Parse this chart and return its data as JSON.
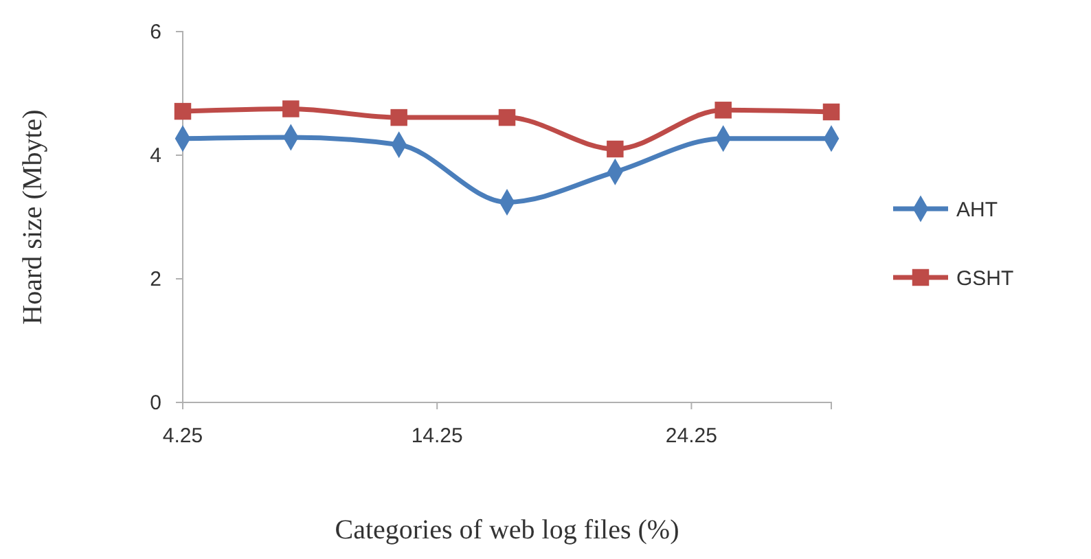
{
  "chart_data": {
    "type": "line",
    "xlabel": "Categories of web log files (%)",
    "ylabel": "Hoard size (Mbyte)",
    "x": [
      4.25,
      8.5,
      12.75,
      17,
      21.25,
      25.5,
      29.75
    ],
    "xlim": [
      4.25,
      29.75
    ],
    "xticks": [
      4.25,
      14.25,
      24.25
    ],
    "ylim": [
      0,
      6
    ],
    "yticks": [
      0,
      2,
      4,
      6
    ],
    "series": [
      {
        "name": "AHT",
        "color": "#4a7ebb",
        "marker": "diamond",
        "values": [
          4.27,
          4.29,
          4.17,
          3.24,
          3.73,
          4.27,
          4.27
        ]
      },
      {
        "name": "GSHT",
        "color": "#be4b48",
        "marker": "square",
        "values": [
          4.71,
          4.75,
          4.61,
          4.61,
          4.1,
          4.73,
          4.7
        ]
      }
    ],
    "grid": false,
    "legend": "right"
  }
}
